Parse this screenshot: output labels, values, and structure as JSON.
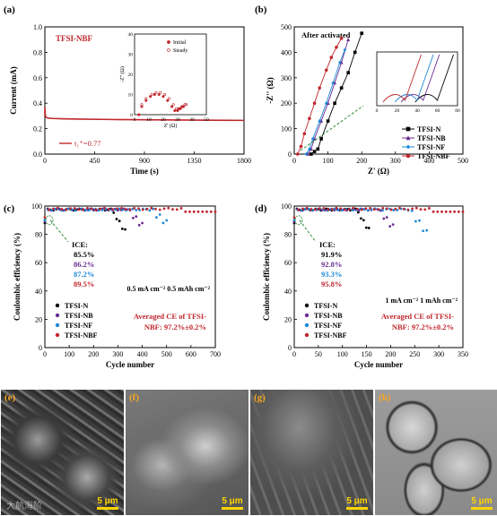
{
  "panels": {
    "a": {
      "label": "(a)"
    },
    "b": {
      "label": "(b)"
    },
    "c": {
      "label": "(c)"
    },
    "d": {
      "label": "(d)"
    },
    "e": {
      "label": "(e)"
    },
    "f": {
      "label": "(f)"
    },
    "g": {
      "label": "(g)"
    },
    "h": {
      "label": "(h)"
    }
  },
  "sem_images": {
    "scale_label": "5 μm",
    "watermark": "大航海阶",
    "panels": [
      {
        "id": "e",
        "label": "(e)",
        "tone": "#5a5a5a"
      },
      {
        "id": "f",
        "label": "(f)",
        "tone": "#777777"
      },
      {
        "id": "g",
        "label": "(g)",
        "tone": "#6a6a6a"
      },
      {
        "id": "h",
        "label": "(h)",
        "tone": "#8a8a8a"
      }
    ]
  },
  "chart_data": [
    {
      "id": "a",
      "type": "line",
      "xlabel": "Time (s)",
      "ylabel": "Current (mA)",
      "xlim": [
        0,
        1800
      ],
      "ylim": [
        0,
        1.0
      ],
      "xticks": [
        0,
        450,
        900,
        1350,
        1800
      ],
      "yticks": [
        0.0,
        0.2,
        0.4,
        0.6,
        0.8,
        1.0
      ],
      "annotation_title": "TFSI-NBF",
      "annotation_t": "t₁⁺=0.77",
      "color": "#c0272d",
      "series": [
        {
          "x": [
            0,
            5,
            10,
            20,
            40,
            80,
            150,
            300,
            600,
            900,
            1200,
            1500,
            1800
          ],
          "y": [
            0.37,
            0.3,
            0.29,
            0.285,
            0.282,
            0.28,
            0.278,
            0.275,
            0.272,
            0.27,
            0.268,
            0.266,
            0.265
          ]
        }
      ],
      "inset": {
        "xlabel": "Z' (Ω)",
        "ylabel": "-Z'' (Ω)",
        "xlim": [
          0,
          50
        ],
        "ylim": [
          0,
          40
        ],
        "xticks": [
          0,
          10,
          20,
          30,
          40,
          50
        ],
        "yticks": [
          0,
          10,
          20,
          30,
          40
        ],
        "legend": [
          {
            "name": "Initial",
            "marker": "filled"
          },
          {
            "name": "Steady",
            "marker": "open"
          }
        ],
        "series": [
          {
            "name": "Initial",
            "x": [
              3,
              5,
              8,
              11,
              14,
              17,
              20,
              23,
              26,
              28,
              30,
              31,
              32,
              33,
              34
            ],
            "y": [
              0,
              4,
              7,
              9,
              10,
              10,
              9,
              7,
              4,
              2,
              2,
              3,
              3,
              4,
              4
            ]
          },
          {
            "name": "Steady",
            "x": [
              3,
              5,
              8,
              12,
              15,
              18,
              21,
              24,
              27,
              29,
              31,
              33,
              34,
              35,
              36
            ],
            "y": [
              0,
              5,
              8,
              10,
              11,
              11,
              10,
              8,
              5,
              3,
              3,
              4,
              4,
              5,
              5
            ]
          }
        ]
      }
    },
    {
      "id": "b",
      "type": "scatter",
      "xlabel": "Z' (Ω)",
      "ylabel": "-Z'' (Ω)",
      "xlim": [
        0,
        500
      ],
      "ylim": [
        0,
        500
      ],
      "xticks": [
        0,
        100,
        200,
        300,
        400,
        500
      ],
      "yticks": [
        0,
        100,
        200,
        300,
        400,
        500
      ],
      "annotation": "After activated",
      "legend": [
        {
          "name": "TFSI-N",
          "color": "#000000",
          "marker": "square"
        },
        {
          "name": "TFSI-NB",
          "color": "#6a2c91",
          "marker": "triangle"
        },
        {
          "name": "TFSI-NF",
          "color": "#1e88d6",
          "marker": "diamond"
        },
        {
          "name": "TFSI-NBF",
          "color": "#c0272d",
          "marker": "circle"
        }
      ],
      "series": [
        {
          "name": "TFSI-N",
          "x": [
            50,
            60,
            70,
            80,
            100,
            120,
            140,
            160,
            180,
            200
          ],
          "y": [
            0,
            10,
            20,
            60,
            130,
            200,
            260,
            320,
            400,
            475
          ]
        },
        {
          "name": "TFSI-NB",
          "x": [
            40,
            50,
            60,
            80,
            100,
            120,
            140,
            160
          ],
          "y": [
            0,
            20,
            60,
            130,
            200,
            280,
            360,
            450
          ]
        },
        {
          "name": "TFSI-NF",
          "x": [
            35,
            45,
            55,
            75,
            95,
            115,
            135,
            150
          ],
          "y": [
            0,
            20,
            60,
            130,
            200,
            280,
            360,
            410
          ]
        },
        {
          "name": "TFSI-NBF",
          "x": [
            10,
            20,
            30,
            45,
            60,
            75,
            95,
            110,
            125,
            140
          ],
          "y": [
            0,
            30,
            80,
            140,
            200,
            260,
            330,
            380,
            420,
            455
          ]
        }
      ],
      "inset": {
        "xlim": [
          0,
          80
        ],
        "xticks": [
          0,
          20,
          40,
          60,
          80
        ]
      }
    },
    {
      "id": "c",
      "type": "scatter",
      "xlabel": "Cycle number",
      "ylabel": "Coulombic efficiency (%)",
      "xlim": [
        0,
        700
      ],
      "ylim": [
        0,
        100
      ],
      "xticks": [
        0,
        100,
        200,
        300,
        400,
        500,
        600,
        700
      ],
      "yticks": [
        0,
        20,
        40,
        60,
        80,
        100
      ],
      "ice_title": "ICE:",
      "ice_values": [
        "85.5%",
        "86.2%",
        "87.2%",
        "89.5%"
      ],
      "condition": "0.5 mA cm⁻²  0.5 mAh cm⁻²",
      "avg_line1": "Averaged CE of TFSI-",
      "avg_line2": "NBF:  97.2%±0.2%",
      "legend": [
        {
          "name": "TFSI-N",
          "color": "#000000"
        },
        {
          "name": "TFSI-NB",
          "color": "#6a2c91"
        },
        {
          "name": "TFSI-NF",
          "color": "#1e88d6"
        },
        {
          "name": "TFSI-NBF",
          "color": "#c0272d"
        }
      ],
      "series": [
        {
          "name": "TFSI-N",
          "end": 330,
          "fail": 82
        },
        {
          "name": "TFSI-NB",
          "end": 400,
          "fail": 86
        },
        {
          "name": "TFSI-NF",
          "end": 500,
          "fail": 88
        },
        {
          "name": "TFSI-NBF",
          "end": 700,
          "fail": 95
        }
      ]
    },
    {
      "id": "d",
      "type": "scatter",
      "xlabel": "Cycle number",
      "ylabel": "Coulombic efficiency (%)",
      "xlim": [
        0,
        350
      ],
      "ylim": [
        0,
        100
      ],
      "xticks": [
        0,
        50,
        100,
        150,
        200,
        250,
        300,
        350
      ],
      "yticks": [
        0,
        20,
        40,
        60,
        80,
        100
      ],
      "ice_title": "ICE:",
      "ice_values": [
        "91.9%",
        "92.8%",
        "93.3%",
        "95.8%"
      ],
      "condition": "1 mA cm⁻²  1 mAh cm⁻²",
      "avg_line1": "Averaged CE of TFSI-",
      "avg_line2": "NBF:  97.2%±0.2%",
      "legend": [
        {
          "name": "TFSI-N",
          "color": "#000000"
        },
        {
          "name": "TFSI-NB",
          "color": "#6a2c91"
        },
        {
          "name": "TFSI-NF",
          "color": "#1e88d6"
        },
        {
          "name": "TFSI-NBF",
          "color": "#c0272d"
        }
      ],
      "series": [
        {
          "name": "TFSI-N",
          "end": 155,
          "fail": 83
        },
        {
          "name": "TFSI-NB",
          "end": 205,
          "fail": 85
        },
        {
          "name": "TFSI-NF",
          "end": 275,
          "fail": 81
        },
        {
          "name": "TFSI-NBF",
          "end": 350,
          "fail": 95
        }
      ]
    }
  ]
}
